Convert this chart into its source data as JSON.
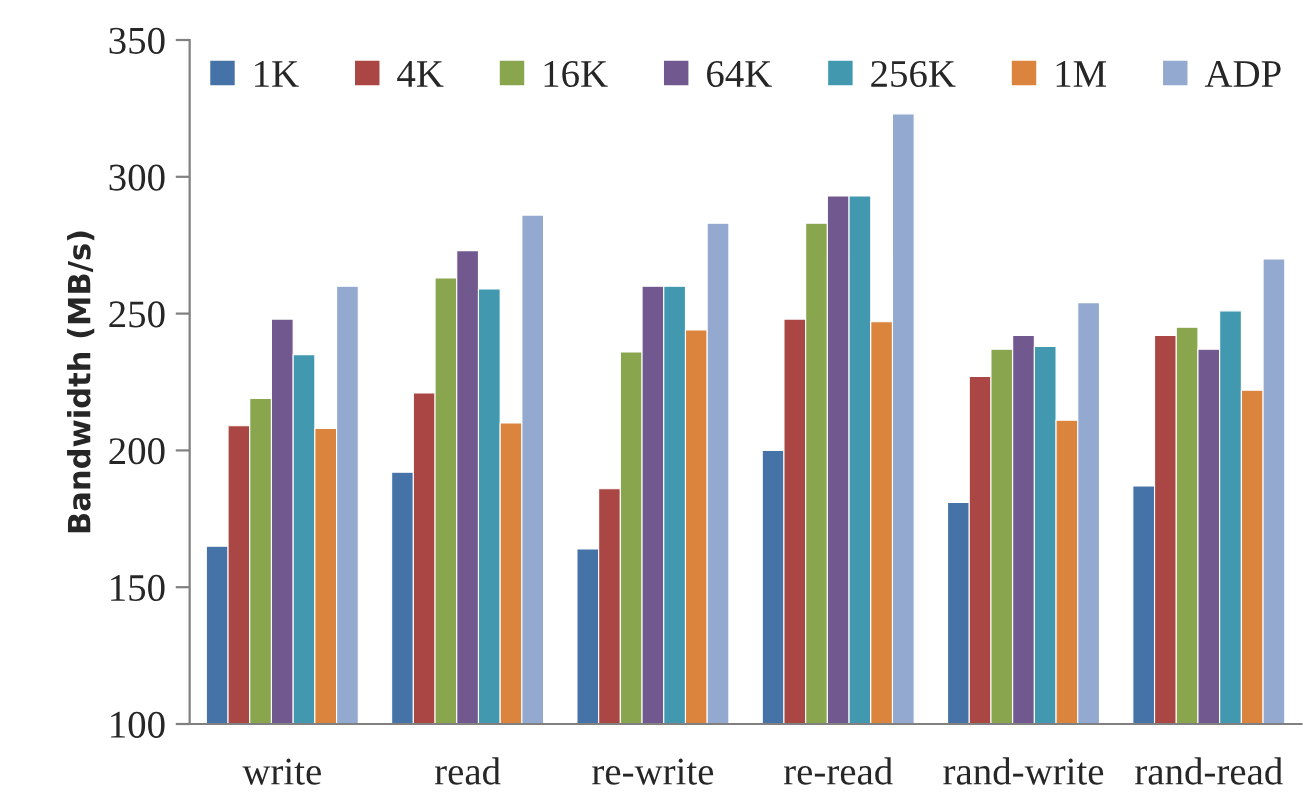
{
  "chart_data": {
    "type": "bar",
    "ylabel": "Bandwidth (MB/s)",
    "categories": [
      "write",
      "read",
      "re-write",
      "re-read",
      "rand-write",
      "rand-read"
    ],
    "series": [
      {
        "name": "1K",
        "color": "#4572a7",
        "values": [
          165,
          192,
          164,
          200,
          181,
          187
        ]
      },
      {
        "name": "4K",
        "color": "#aa4643",
        "values": [
          209,
          221,
          186,
          248,
          227,
          242
        ]
      },
      {
        "name": "16K",
        "color": "#89a54e",
        "values": [
          219,
          263,
          236,
          283,
          237,
          245
        ]
      },
      {
        "name": "64K",
        "color": "#71588f",
        "values": [
          248,
          273,
          260,
          293,
          242,
          237
        ]
      },
      {
        "name": "256K",
        "color": "#4198af",
        "values": [
          235,
          259,
          260,
          293,
          238,
          251
        ]
      },
      {
        "name": "1M",
        "color": "#db843d",
        "values": [
          208,
          210,
          244,
          247,
          211,
          222
        ]
      },
      {
        "name": "ADP",
        "color": "#93a9cf",
        "values": [
          260,
          286,
          283,
          323,
          254,
          270
        ]
      }
    ],
    "ylim": [
      100,
      350
    ],
    "yticks": [
      100,
      150,
      200,
      250,
      300,
      350
    ],
    "grid": false,
    "legend": "top"
  }
}
